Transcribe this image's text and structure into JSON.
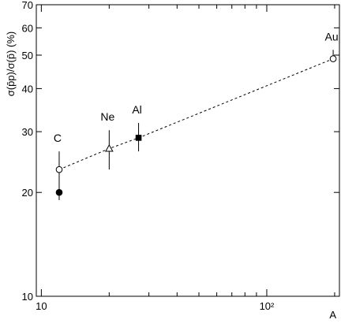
{
  "chart_data": {
    "type": "scatter",
    "title": "",
    "xlabel": "A",
    "ylabel": "σ(p̄p)/σ(p̄) (%)",
    "x_scale": "log",
    "y_scale": "log",
    "xlim": [
      9.5,
      210
    ],
    "ylim": [
      10,
      70
    ],
    "x_ticks": [
      {
        "value": 10,
        "label": "10"
      },
      {
        "value": 100,
        "label": "10²"
      }
    ],
    "y_ticks": [
      {
        "value": 10,
        "label": "10"
      },
      {
        "value": 20,
        "label": "20"
      },
      {
        "value": 30,
        "label": "30"
      },
      {
        "value": 40,
        "label": "40"
      },
      {
        "value": 50,
        "label": "50"
      },
      {
        "value": 60,
        "label": "60"
      },
      {
        "value": 70,
        "label": "70"
      }
    ],
    "points": [
      {
        "label": "",
        "x": 12,
        "y": 20.0,
        "err_lo": 1.0,
        "err_hi": 2.0,
        "marker": "filled-circle"
      },
      {
        "label": "C",
        "x": 12,
        "y": 23.3,
        "err_lo": 1.5,
        "err_hi": 3.0,
        "marker": "open-circle"
      },
      {
        "label": "Ne",
        "x": 20,
        "y": 26.8,
        "err_lo": 3.5,
        "err_hi": 3.5,
        "marker": "open-triangle"
      },
      {
        "label": "Al",
        "x": 27,
        "y": 28.8,
        "err_lo": 2.5,
        "err_hi": 3.0,
        "marker": "filled-square"
      },
      {
        "label": "Au",
        "x": 197,
        "y": 48.8,
        "err_lo": 0.8,
        "err_hi": 3.0,
        "marker": "open-circle"
      }
    ],
    "fit_line": {
      "style": "dashed",
      "x": [
        12,
        20,
        27,
        197
      ],
      "y": [
        23.3,
        26.8,
        28.8,
        48.8
      ]
    },
    "grid": false,
    "legend": "none"
  }
}
